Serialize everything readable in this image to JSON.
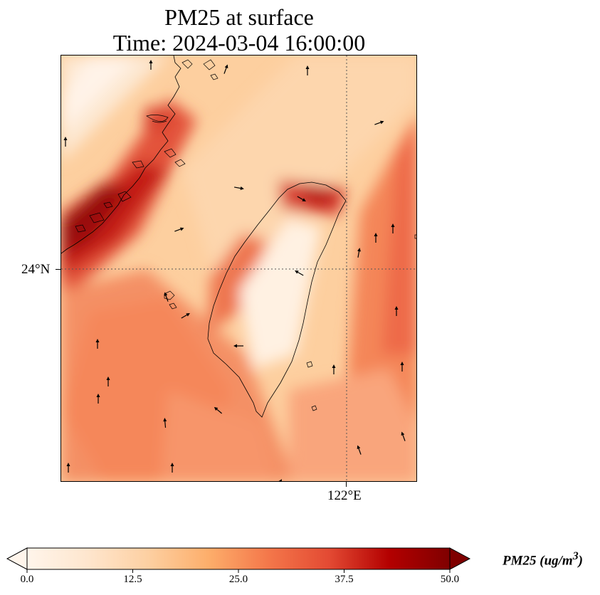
{
  "title_line1": "PM25 at surface",
  "title_line2": "Time: 2024-03-04 16:00:00",
  "map": {
    "lat_gridline_label": "24°N",
    "lon_gridline_label": "122°E",
    "lat_gridline_value": 24,
    "lon_gridline_value": 122,
    "colormap": [
      "#fff5eb",
      "#fee6ce",
      "#fdd0a2",
      "#fdae6b",
      "#f4774a",
      "#e34a33",
      "#b30000",
      "#7f0000"
    ],
    "coastline_color": "#000000",
    "wind_arrows": "black vectors showing near-surface wind direction"
  },
  "colorbar": {
    "title": "PM25 (ug/m",
    "title_sup": "3",
    "title_close": ")",
    "range": [
      0.0,
      50.0
    ],
    "tick_values": [
      0.0,
      12.5,
      25.0,
      37.5,
      50.0
    ],
    "tick_labels": [
      "0.0",
      "12.5",
      "25.0",
      "37.5",
      "50.0"
    ],
    "extend": "both"
  }
}
